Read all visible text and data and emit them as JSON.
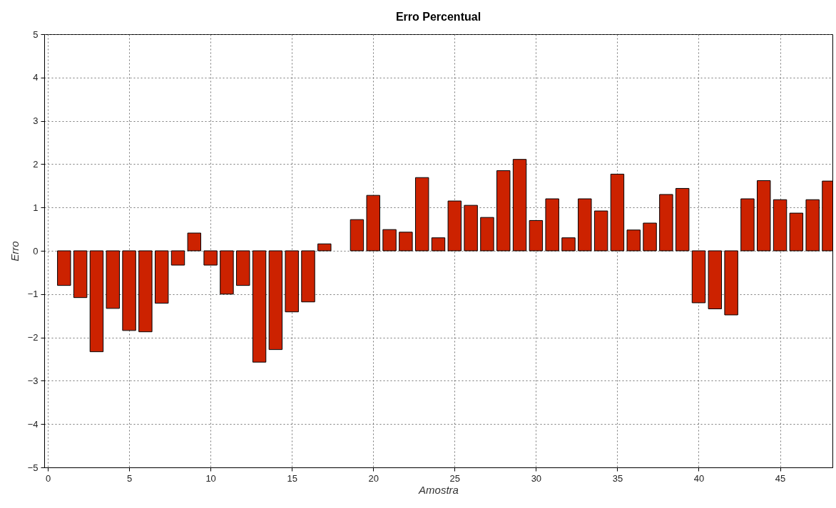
{
  "chart_data": {
    "type": "bar",
    "title": "Erro Percentual",
    "xlabel": "Amostra",
    "ylabel": "Erro",
    "x": [
      1,
      2,
      3,
      4,
      5,
      6,
      7,
      8,
      9,
      10,
      11,
      12,
      13,
      14,
      15,
      16,
      17,
      18,
      19,
      20,
      21,
      22,
      23,
      24,
      25,
      26,
      27,
      28,
      29,
      30,
      31,
      32,
      33,
      34,
      35,
      36,
      37,
      38,
      39,
      40,
      41,
      42,
      43,
      44,
      45,
      46,
      47,
      48
    ],
    "values": [
      -0.8,
      -1.08,
      -2.33,
      -1.33,
      -1.84,
      -1.87,
      -1.21,
      -0.33,
      0.41,
      -0.33,
      -1.0,
      -0.8,
      -2.57,
      -2.28,
      -1.41,
      -1.18,
      0.16,
      null,
      0.72,
      1.28,
      0.49,
      0.43,
      1.69,
      0.3,
      1.15,
      1.05,
      0.77,
      1.85,
      2.11,
      0.7,
      1.2,
      0.3,
      1.2,
      0.92,
      1.77,
      0.48,
      0.64,
      1.3,
      1.44,
      -1.2,
      -1.34,
      -1.48,
      1.2,
      1.62,
      1.18,
      0.87,
      1.18,
      1.61
    ],
    "color": "#cc2200",
    "xlim": [
      0,
      48
    ],
    "xticks": [
      0,
      5,
      10,
      15,
      20,
      25,
      30,
      35,
      40,
      45
    ],
    "ylim": [
      -5,
      5
    ],
    "yticks": [
      -5,
      -4,
      -3,
      -2,
      -1,
      0,
      1,
      2,
      3,
      4,
      5
    ],
    "grid": true
  }
}
